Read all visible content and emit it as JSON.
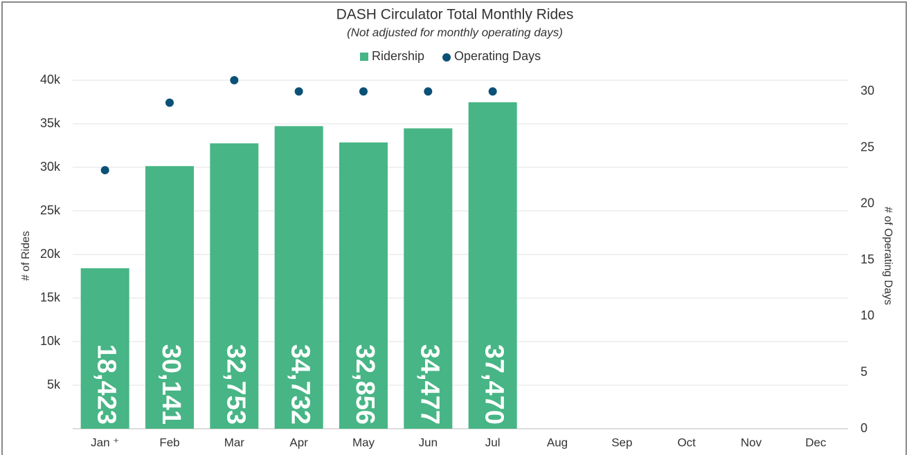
{
  "chart_data": {
    "type": "bar",
    "title": "DASH Circulator Total Monthly Rides",
    "subtitle": "(Not adjusted for monthly operating days)",
    "y_label": "# of Rides",
    "y2_label": "# of Operating Days",
    "categories": [
      "Jan ⁺",
      "Feb",
      "Mar",
      "Apr",
      "May",
      "Jun",
      "Jul",
      "Aug",
      "Sep",
      "Oct",
      "Nov",
      "Dec"
    ],
    "series": [
      {
        "name": "Ridership",
        "type": "bar",
        "color": "#47b585",
        "values": [
          18423,
          30141,
          32753,
          34732,
          32856,
          34477,
          37470,
          null,
          null,
          null,
          null,
          null
        ],
        "value_labels": [
          "18,423",
          "30,141",
          "32,753",
          "34,732",
          "32,856",
          "34,477",
          "37,470",
          null,
          null,
          null,
          null,
          null
        ]
      },
      {
        "name": "Operating Days",
        "type": "scatter",
        "color": "#0b5177",
        "axis": "y2",
        "values": [
          23,
          29,
          31,
          30,
          30,
          30,
          30,
          null,
          null,
          null,
          null,
          null
        ]
      }
    ],
    "ylim": [
      0,
      40000
    ],
    "yticks": [
      {
        "value": 5000,
        "label": "5k"
      },
      {
        "value": 10000,
        "label": "10k"
      },
      {
        "value": 15000,
        "label": "15k"
      },
      {
        "value": 20000,
        "label": "20k"
      },
      {
        "value": 25000,
        "label": "25k"
      },
      {
        "value": 30000,
        "label": "30k"
      },
      {
        "value": 35000,
        "label": "35k"
      },
      {
        "value": 40000,
        "label": "40k"
      }
    ],
    "y2lim": [
      0,
      31
    ],
    "y2ticks": [
      0,
      5,
      10,
      15,
      20,
      25,
      30
    ],
    "grid": true,
    "legend": "top"
  }
}
